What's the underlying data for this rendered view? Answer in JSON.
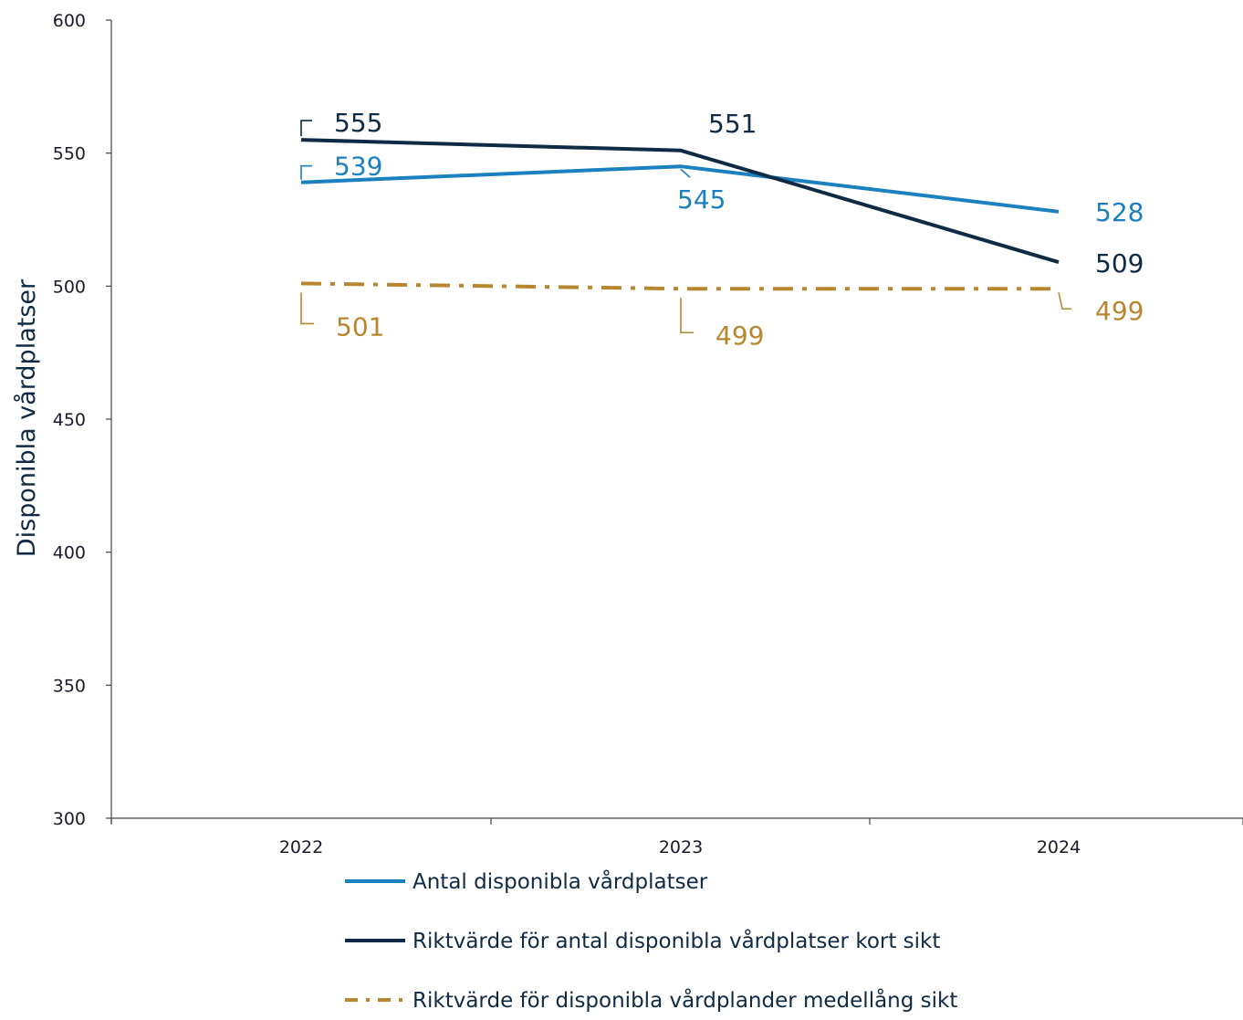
{
  "chart_data": {
    "type": "line",
    "categories": [
      "2022",
      "2023",
      "2024"
    ],
    "ylabel": "Disponibla vårdplatser",
    "xlabel": "",
    "ylim": [
      300,
      600
    ],
    "yticks": [
      300,
      350,
      400,
      450,
      500,
      550,
      600
    ],
    "grid": false,
    "legend_position": "bottom",
    "series": [
      {
        "name": "Antal disponibla vårdplatser",
        "values": [
          539,
          545,
          528
        ],
        "labels": [
          "539",
          "545",
          "528"
        ],
        "color": "#1a80c0",
        "style": "solid"
      },
      {
        "name": "Riktvärde för antal disponibla vårdplatser kort sikt",
        "values": [
          555,
          551,
          509
        ],
        "labels": [
          "555",
          "551",
          "509"
        ],
        "color": "#0e2a44",
        "style": "solid"
      },
      {
        "name": "Riktvärde för disponibla vårdplander medellång sikt",
        "values": [
          501,
          499,
          499
        ],
        "labels": [
          "501",
          "499",
          "499"
        ],
        "color": "#b8862e",
        "style": "dashdot"
      }
    ]
  }
}
